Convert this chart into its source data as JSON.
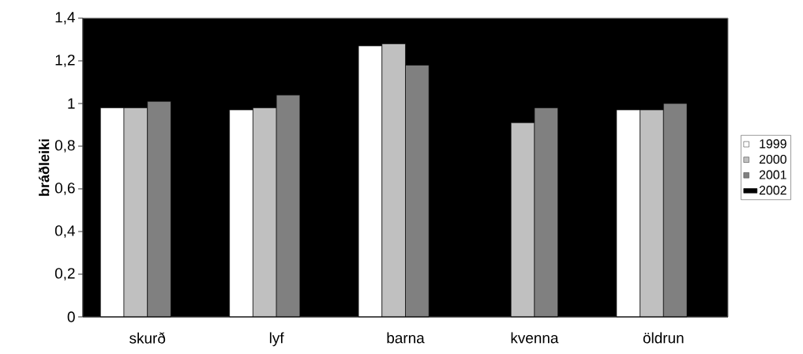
{
  "chart_data": {
    "type": "bar",
    "ylabel": "bráðleiki",
    "categories": [
      "skurð",
      "lyf",
      "barna",
      "kvenna",
      "öldrun"
    ],
    "series": [
      {
        "name": "1999",
        "color": "#ffffff",
        "values": [
          0.98,
          0.97,
          1.27,
          null,
          0.97
        ]
      },
      {
        "name": "2000",
        "color": "#c0c0c0",
        "values": [
          0.98,
          0.98,
          1.28,
          0.91,
          0.97
        ]
      },
      {
        "name": "2001",
        "color": "#808080",
        "values": [
          1.01,
          1.04,
          1.18,
          0.98,
          1.0
        ]
      },
      {
        "name": "2002",
        "color": "#000000",
        "values": [
          null,
          null,
          null,
          null,
          null
        ]
      }
    ],
    "ylim": [
      0,
      1.4
    ],
    "yticks": [
      0,
      {
        "value": 0.2,
        "label": "0,2"
      },
      {
        "value": 0.4,
        "label": "0,4"
      },
      {
        "value": 0.6,
        "label": "0,6"
      },
      {
        "value": 0.8,
        "label": "0,8"
      },
      1,
      {
        "value": 1.2,
        "label": "1,2"
      },
      {
        "value": 1.4,
        "label": "1,4"
      }
    ],
    "legend": "right",
    "grid": false
  }
}
